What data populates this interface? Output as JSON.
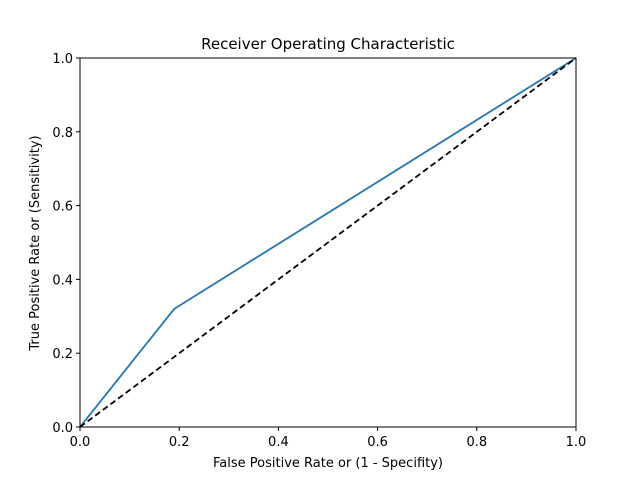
{
  "chart_data": {
    "type": "line",
    "title": "Receiver Operating Characteristic",
    "xlabel": "False Positive Rate or (1 - Specifity)",
    "ylabel": "True Positive Rate or (Sensitivity)",
    "xlim": [
      0.0,
      1.0
    ],
    "ylim": [
      0.0,
      1.0
    ],
    "xticks": [
      "0.0",
      "0.2",
      "0.4",
      "0.6",
      "0.8",
      "1.0"
    ],
    "yticks": [
      "0.0",
      "0.2",
      "0.4",
      "0.6",
      "0.8",
      "1.0"
    ],
    "grid": false,
    "series": [
      {
        "x": [
          0.0,
          0.19,
          1.0
        ],
        "y": [
          0.0,
          0.32,
          1.0
        ],
        "color": "#1f77b4",
        "style": "solid"
      },
      {
        "x": [
          0.0,
          1.0
        ],
        "y": [
          0.0,
          1.0
        ],
        "color": "#000000",
        "style": "dashed"
      }
    ]
  }
}
